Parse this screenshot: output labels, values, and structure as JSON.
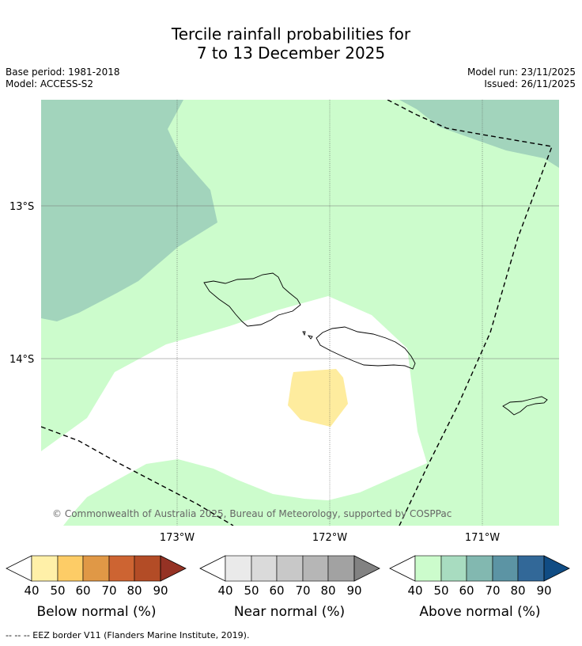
{
  "title": {
    "line1": "Tercile rainfall probabilities for",
    "line2": "7 to 13 December 2025"
  },
  "meta": {
    "base_period": "Base period: 1981-2018",
    "model": "Model: ACCESS-S2",
    "model_run": "Model run: 23/11/2025",
    "issued": "Issued: 26/11/2025"
  },
  "map": {
    "lat_labels": [
      "13°S",
      "14°S"
    ],
    "lon_labels": [
      "173°W",
      "172°W",
      "171°W"
    ],
    "copyright": "© Commonwealth of Australia 2025, Bureau of Meteorology, supported by COSPPac",
    "colors": {
      "ocean_neutral": "#ffffff",
      "above_40": "#ccfccc",
      "above_50": "#a2d4bc",
      "below_40": "#feec9e",
      "grid": "#555555",
      "coast": "#000000"
    }
  },
  "legends": [
    {
      "label": "Below normal (%)",
      "ticks": [
        "40",
        "50",
        "60",
        "70",
        "80",
        "90"
      ],
      "colors": [
        "#fff0a8",
        "#fdcc66",
        "#e09846",
        "#cd6432",
        "#b34c26",
        "#953224"
      ]
    },
    {
      "label": "Near normal (%)",
      "ticks": [
        "40",
        "50",
        "60",
        "70",
        "80",
        "90"
      ],
      "colors": [
        "#eaeaea",
        "#dadada",
        "#c8c8c8",
        "#b6b6b6",
        "#a2a2a2",
        "#828282"
      ]
    },
    {
      "label": "Above normal (%)",
      "ticks": [
        "40",
        "50",
        "60",
        "70",
        "80",
        "90"
      ],
      "colors": [
        "#ccfccc",
        "#a8dcc0",
        "#82b8b0",
        "#5c94a4",
        "#326898",
        "#104c84"
      ]
    }
  ],
  "footer": {
    "eez_note": "--  --  -- EEZ border V11 (Flanders Marine Institute, 2019)."
  }
}
